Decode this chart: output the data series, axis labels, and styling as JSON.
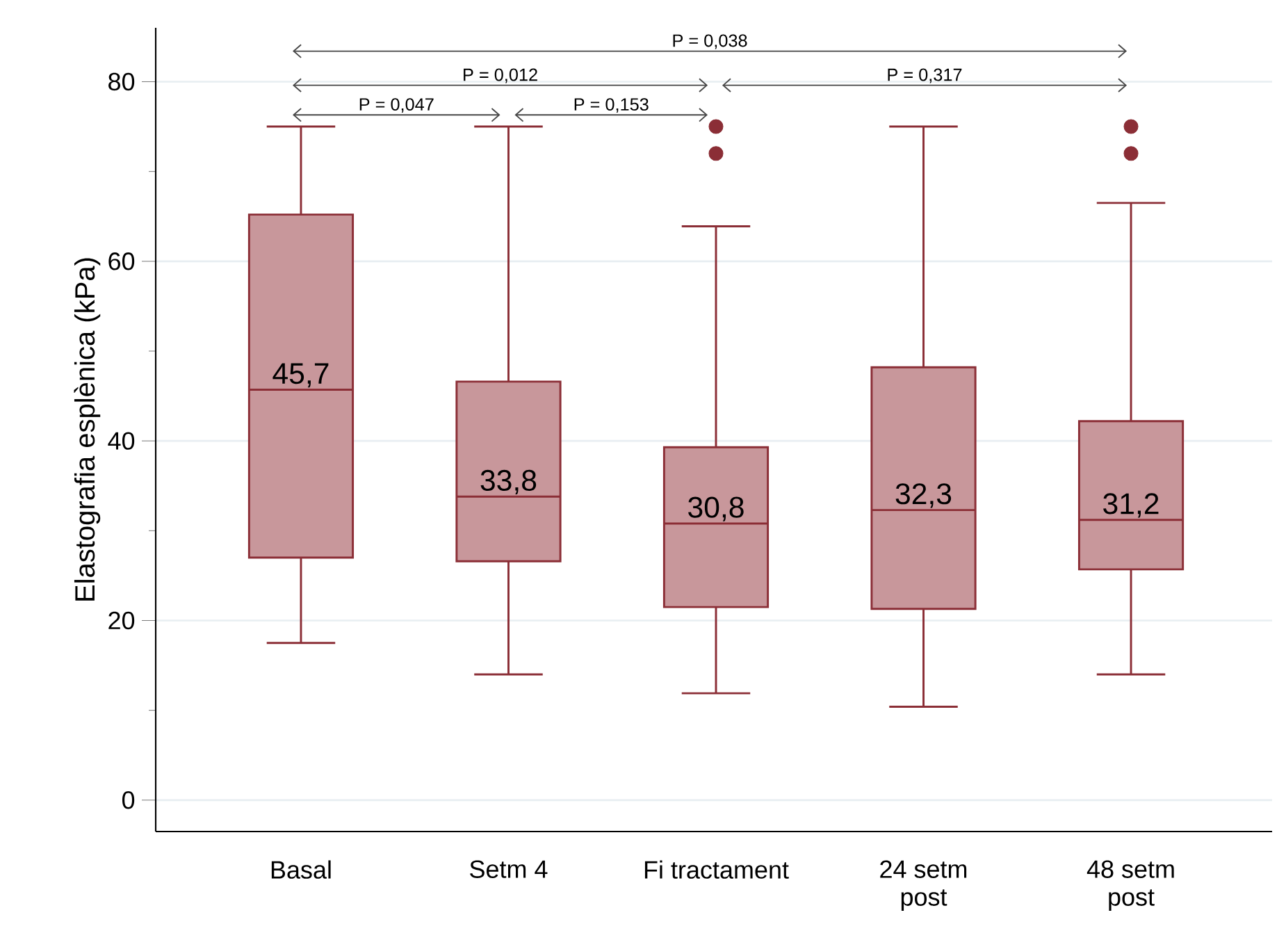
{
  "chart_data": {
    "type": "box",
    "ylabel": "Elastografia esplènica (kPa)",
    "categories": [
      "Basal",
      "Setm 4",
      "Fi tractament",
      "24 setm post",
      "48 setm post"
    ],
    "boxes": [
      {
        "low": 17.5,
        "q1": 27.0,
        "median": 45.7,
        "q3": 65.2,
        "high": 75.0
      },
      {
        "low": 14.0,
        "q1": 26.6,
        "median": 33.8,
        "q3": 46.6,
        "high": 75.0
      },
      {
        "low": 11.9,
        "q1": 21.5,
        "median": 30.8,
        "q3": 39.3,
        "high": 63.9,
        "outliers": [
          75.0,
          72.0
        ]
      },
      {
        "low": 10.4,
        "q1": 21.3,
        "median": 32.3,
        "q3": 48.2,
        "high": 75.0
      },
      {
        "low": 14.0,
        "q1": 25.7,
        "median": 31.2,
        "q3": 42.2,
        "high": 66.5,
        "outliers": [
          75.0,
          72.0
        ]
      }
    ],
    "color": "#c8979b",
    "ylim": [
      -3.5,
      86
    ],
    "yticks": [
      0,
      20,
      40,
      60,
      80
    ],
    "grid": "y",
    "marker": "circle",
    "value_labels": [
      "45,7",
      "33,8",
      "30,8",
      "32,3",
      "31,2"
    ],
    "annotations": [
      "P = 0,038",
      "P = 0,012",
      "P = 0,317",
      "P = 0,047",
      "P = 0,153"
    ]
  }
}
